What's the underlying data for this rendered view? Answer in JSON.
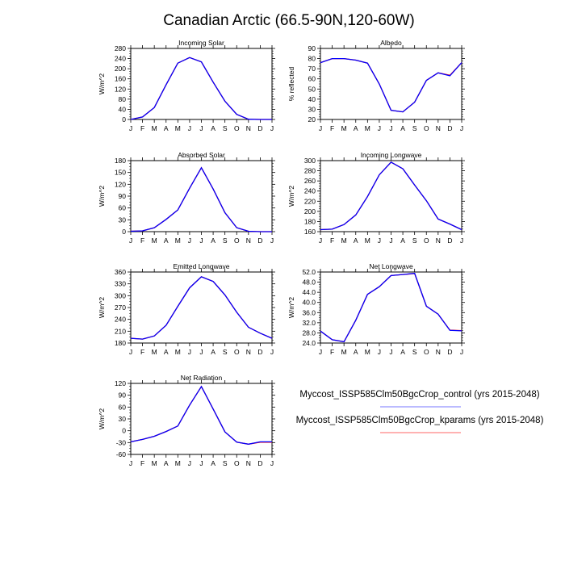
{
  "title": "Canadian Arctic (66.5-90N,120-60W)",
  "months": [
    "J",
    "F",
    "M",
    "A",
    "M",
    "J",
    "J",
    "A",
    "S",
    "O",
    "N",
    "D",
    "J"
  ],
  "legend": [
    {
      "label": "Myccost_ISSP585Clm50BgcCrop_control (yrs 2015-2048)",
      "color": "#7777ff"
    },
    {
      "label": "Myccost_ISSP585Clm50BgcCrop_kparams (yrs 2015-2048)",
      "color": "#ff6666"
    }
  ],
  "series_colors": {
    "control": "#0000ff",
    "kparams": "#ff0000"
  },
  "chart_data": [
    {
      "type": "line",
      "title": "Incoming Solar",
      "ylabel": "W/m^2",
      "ylim": [
        0,
        280
      ],
      "yticks": [
        "0",
        "40",
        "80",
        "120",
        "160",
        "200",
        "240",
        "280"
      ],
      "series": [
        {
          "name": "control",
          "values": [
            0,
            10,
            47,
            137,
            222,
            244,
            227,
            147,
            72,
            20,
            1,
            0,
            0
          ]
        },
        {
          "name": "kparams",
          "values": [
            0,
            10,
            47,
            137,
            222,
            244,
            227,
            147,
            72,
            20,
            1,
            0,
            0
          ]
        }
      ]
    },
    {
      "type": "line",
      "title": "Albedo",
      "ylabel": "% reflected",
      "ylim": [
        20,
        90
      ],
      "yticks": [
        "20",
        "30",
        "40",
        "50",
        "60",
        "70",
        "80",
        "90"
      ],
      "series": [
        {
          "name": "control",
          "values": [
            76,
            80,
            80,
            78.5,
            75.5,
            55,
            29,
            27.5,
            37,
            58.5,
            66,
            63,
            76
          ]
        },
        {
          "name": "kparams",
          "values": [
            76,
            80,
            80,
            78.5,
            75.5,
            55,
            29,
            27.5,
            37,
            58.5,
            66,
            63.5,
            76
          ]
        }
      ]
    },
    {
      "type": "line",
      "title": "Absorbed Solar",
      "ylabel": "W/m^2",
      "ylim": [
        0,
        180
      ],
      "yticks": [
        "0",
        "30",
        "60",
        "90",
        "120",
        "150",
        "180"
      ],
      "series": [
        {
          "name": "control",
          "values": [
            1,
            2,
            10,
            31,
            55,
            110,
            162,
            108,
            48,
            10,
            1,
            0,
            0
          ]
        },
        {
          "name": "kparams",
          "values": [
            1,
            2,
            10,
            31,
            55,
            110,
            162,
            108,
            48,
            10,
            1,
            0,
            0
          ]
        }
      ]
    },
    {
      "type": "line",
      "title": "Incoming Longwave",
      "ylabel": "W/m^2",
      "ylim": [
        160,
        300
      ],
      "yticks": [
        "160",
        "180",
        "200",
        "220",
        "240",
        "260",
        "280",
        "300"
      ],
      "series": [
        {
          "name": "control",
          "values": [
            164,
            165,
            174,
            193,
            229,
            272,
            297,
            284,
            252,
            221,
            185,
            175,
            164
          ]
        },
        {
          "name": "kparams",
          "values": [
            164,
            165,
            174,
            193,
            229,
            272,
            297,
            284,
            252,
            221,
            185,
            175,
            164
          ]
        }
      ]
    },
    {
      "type": "line",
      "title": "Emitted Longwave",
      "ylabel": "W/m^2",
      "ylim": [
        180,
        360
      ],
      "yticks": [
        "180",
        "210",
        "240",
        "270",
        "300",
        "330",
        "360"
      ],
      "series": [
        {
          "name": "control",
          "values": [
            192,
            190,
            198,
            225,
            273,
            320,
            348,
            336,
            302,
            258,
            220,
            205,
            192
          ]
        },
        {
          "name": "kparams",
          "values": [
            192,
            190,
            198,
            225,
            273,
            320,
            348,
            336,
            302,
            258,
            220,
            205,
            192
          ]
        }
      ]
    },
    {
      "type": "line",
      "title": "Net Longwave",
      "ylabel": "W/m^2",
      "ylim": [
        24,
        52
      ],
      "yticks": [
        "24.0",
        "28.0",
        "32.0",
        "36.0",
        "40.0",
        "44.0",
        "48.0",
        "52.0"
      ],
      "series": [
        {
          "name": "control",
          "values": [
            28.7,
            25.3,
            24.5,
            33,
            43.2,
            46.2,
            50.6,
            51.0,
            51.5,
            38.5,
            35.4,
            29.0,
            28.8
          ]
        },
        {
          "name": "kparams",
          "values": [
            28.7,
            25.3,
            24.5,
            33,
            43.2,
            46.2,
            50.6,
            51.0,
            51.4,
            38.5,
            35.4,
            29.1,
            28.9
          ]
        }
      ]
    },
    {
      "type": "line",
      "title": "Net Radiation",
      "ylabel": "W/m^2",
      "ylim": [
        -60,
        120
      ],
      "yticks": [
        "-60",
        "-30",
        "0",
        "30",
        "60",
        "90",
        "120"
      ],
      "series": [
        {
          "name": "control",
          "values": [
            -28,
            -22,
            -14,
            -2,
            12,
            65,
            112,
            55,
            -3,
            -29,
            -34,
            -28,
            -28
          ]
        },
        {
          "name": "kparams",
          "values": [
            -28,
            -22,
            -14,
            -2,
            12,
            65,
            112,
            55,
            -3,
            -29,
            -34,
            -29,
            -29
          ]
        }
      ]
    }
  ]
}
